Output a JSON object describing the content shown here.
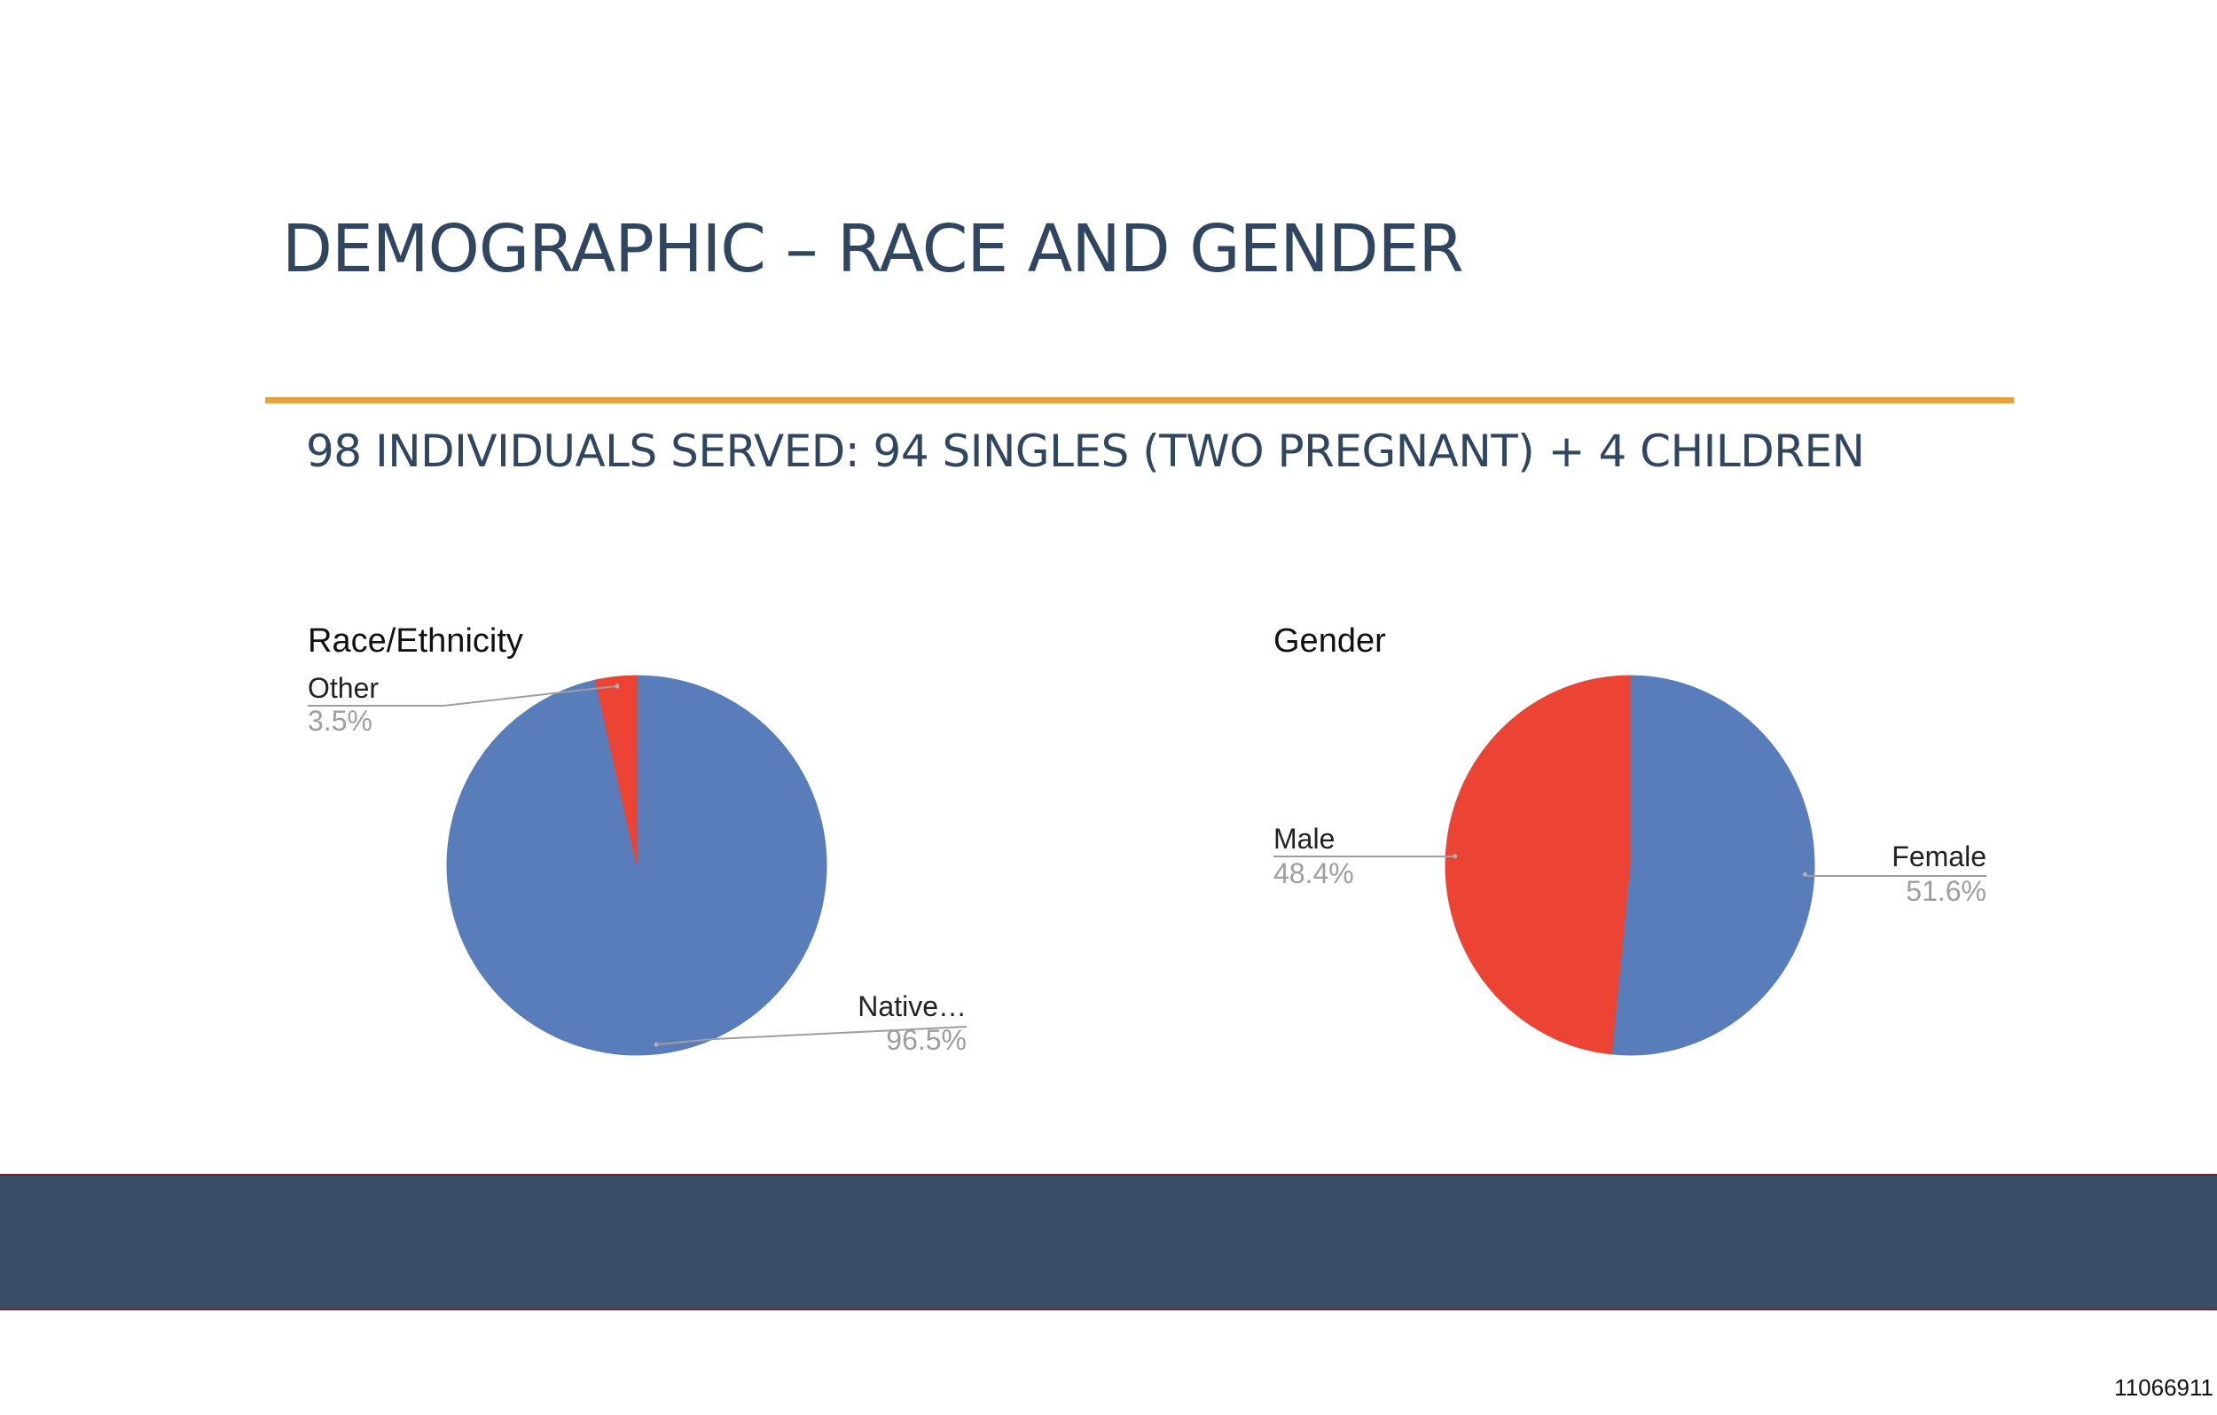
{
  "slide": {
    "title": "DEMOGRAPHIC – RACE AND GENDER",
    "subtitle": "98 INDIVIDUALS SERVED: 94 SINGLES (TWO PREGNANT) + 4 CHILDREN",
    "doc_number": "11066911",
    "accent_color": "#e8a23b",
    "text_color": "#2f4560",
    "footer_color": "#374d66"
  },
  "chart_data": [
    {
      "type": "pie",
      "title": "Race/Ethnicity",
      "slices": [
        {
          "label": "Native…",
          "value": 96.5,
          "percent_label": "96.5%",
          "color": "#587dba"
        },
        {
          "label": "Other",
          "value": 3.5,
          "percent_label": "3.5%",
          "color": "#eb4435"
        }
      ]
    },
    {
      "type": "pie",
      "title": "Gender",
      "slices": [
        {
          "label": "Female",
          "value": 51.6,
          "percent_label": "51.6%",
          "color": "#587dba"
        },
        {
          "label": "Male",
          "value": 48.4,
          "percent_label": "48.4%",
          "color": "#eb4435"
        }
      ]
    }
  ]
}
